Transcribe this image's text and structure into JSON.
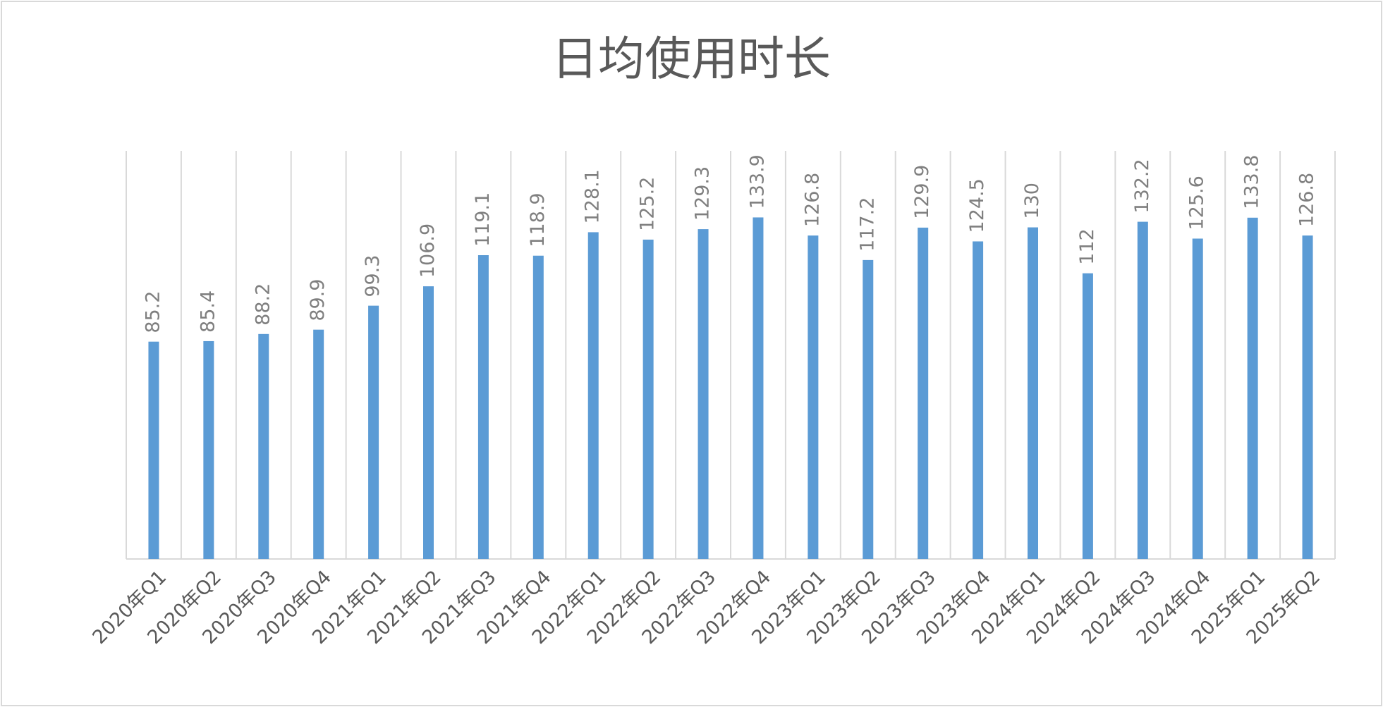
{
  "chart_data": {
    "type": "bar",
    "title": "日均使用时长",
    "categories": [
      "2020年Q1",
      "2020年Q2",
      "2020年Q3",
      "2020年Q4",
      "2021年Q1",
      "2021年Q2",
      "2021年Q3",
      "2021年Q4",
      "2022年Q1",
      "2022年Q2",
      "2022年Q3",
      "2022年Q4",
      "2023年Q1",
      "2023年Q2",
      "2023年Q3",
      "2023年Q4",
      "2024年Q1",
      "2024年Q2",
      "2024年Q3",
      "2024年Q4",
      "2025年Q1",
      "2025年Q2"
    ],
    "values": [
      85.2,
      85.4,
      88.2,
      89.9,
      99.3,
      106.9,
      119.1,
      118.9,
      128.1,
      125.2,
      129.3,
      133.9,
      126.8,
      117.2,
      129.9,
      124.5,
      130,
      112,
      132.2,
      125.6,
      133.8,
      126.8
    ],
    "color": "#5b9bd5",
    "ylim": [
      0,
      160
    ]
  }
}
